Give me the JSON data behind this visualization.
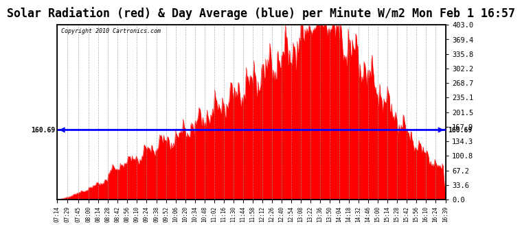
{
  "title": "Solar Radiation (red) & Day Average (blue) per Minute W/m2 Mon Feb 1 16:57",
  "copyright": "Copyright 2010 Cartronics.com",
  "y_min": 0.0,
  "y_max": 403.0,
  "y_ticks": [
    0.0,
    33.6,
    67.2,
    100.8,
    134.3,
    167.9,
    201.5,
    235.1,
    268.7,
    302.2,
    335.8,
    369.4,
    403.0
  ],
  "avg_line": 160.69,
  "avg_label": "160.69",
  "fill_color": "#FF0000",
  "line_color": "#0000FF",
  "background_color": "#FFFFFF",
  "grid_color": "#999999",
  "title_fontsize": 12,
  "x_tick_labels": [
    "07:14",
    "07:29",
    "07:45",
    "08:00",
    "08:14",
    "08:28",
    "08:42",
    "08:56",
    "09:10",
    "09:24",
    "09:38",
    "09:52",
    "10:06",
    "10:20",
    "10:34",
    "10:48",
    "11:02",
    "11:16",
    "11:30",
    "11:44",
    "11:58",
    "12:12",
    "12:26",
    "12:40",
    "12:54",
    "13:08",
    "13:22",
    "13:36",
    "13:50",
    "14:04",
    "14:18",
    "14:32",
    "14:46",
    "15:00",
    "15:14",
    "15:28",
    "15:42",
    "15:56",
    "16:10",
    "16:24",
    "16:39"
  ]
}
